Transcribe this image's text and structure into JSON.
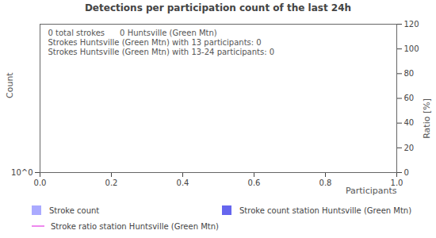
{
  "chart_data": {
    "type": "bar",
    "title": "Detections per participation count of the last 24h",
    "x_label": "Participants",
    "y_label": "Count",
    "y2_label": "Ratio [%]",
    "annotations": [
      "0 total strokes      0 Huntsville (Green Mtn)",
      "Strokes Huntsville (Green Mtn) with 13 participants: 0",
      "Strokes Huntsville (Green Mtn) with 13-24 participants: 0"
    ],
    "x": [],
    "series": [
      {
        "name": "Stroke count",
        "color": "#aaaaff",
        "type": "bar",
        "values": []
      },
      {
        "name": "Stroke count station Huntsville (Green Mtn)",
        "color": "#6666ee",
        "type": "bar",
        "values": []
      },
      {
        "name": "Stroke ratio station Huntsville (Green Mtn)",
        "color": "#ee88ee",
        "type": "line",
        "axis": "y2",
        "values": []
      }
    ],
    "xlim": [
      0,
      1
    ],
    "xticks": [
      {
        "value": 0,
        "label": "0.0"
      },
      {
        "value": 0.2,
        "label": "0.2"
      },
      {
        "value": 0.4,
        "label": "0.4"
      },
      {
        "value": 0.6,
        "label": "0.6"
      },
      {
        "value": 0.8,
        "label": "0.8"
      },
      {
        "value": 1,
        "label": "1.0"
      }
    ],
    "ylim": [
      1,
      10
    ],
    "yticks": [
      {
        "value": 1,
        "label": "10^0"
      }
    ],
    "log": "y",
    "y2lim": [
      0,
      120
    ],
    "y2ticks": [
      0,
      20,
      40,
      60,
      80,
      100,
      120
    ],
    "grid": false,
    "legend": "bottom"
  }
}
